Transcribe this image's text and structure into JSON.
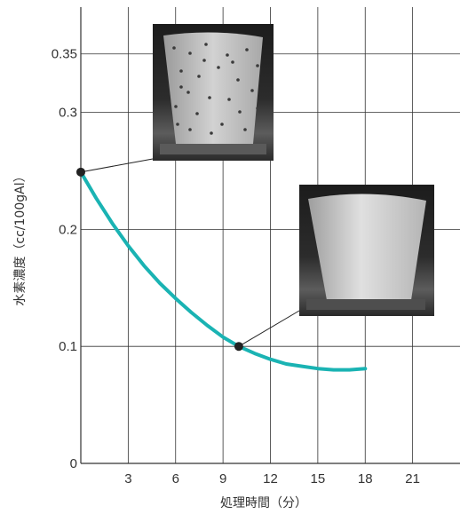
{
  "chart_data": {
    "type": "line",
    "xlabel": "処理時間（分）",
    "ylabel": "水素濃度（cc/100gAl）",
    "xlim": [
      0,
      24
    ],
    "ylim": [
      0,
      0.39
    ],
    "x_ticks": [
      "3",
      "6",
      "9",
      "12",
      "15",
      "18",
      "21"
    ],
    "x_tick_values": [
      3,
      6,
      9,
      12,
      15,
      18,
      21
    ],
    "y_ticks": [
      "0",
      "0.1",
      "0.2",
      "0.3",
      "0.35"
    ],
    "y_tick_values": [
      0,
      0.1,
      0.2,
      0.3,
      0.35
    ],
    "grid": true,
    "series": [
      {
        "x": [
          0,
          1,
          2,
          3,
          4,
          5,
          6,
          7,
          8,
          9,
          10,
          11,
          12,
          13,
          14,
          15,
          16,
          17,
          18
        ],
        "y": [
          0.249,
          0.226,
          0.205,
          0.186,
          0.169,
          0.154,
          0.141,
          0.129,
          0.118,
          0.108,
          0.1,
          0.094,
          0.089,
          0.085,
          0.083,
          0.081,
          0.08,
          0.08,
          0.081
        ],
        "color": "#1ab3b3"
      }
    ],
    "highlight_points": [
      {
        "x": 0,
        "y": 0.249
      },
      {
        "x": 10,
        "y": 0.1
      }
    ],
    "insets": [
      {
        "description": "porous-specimen-photo",
        "points_to": {
          "x": 0,
          "y": 0.249
        }
      },
      {
        "description": "dense-specimen-photo",
        "points_to": {
          "x": 10,
          "y": 0.1
        }
      }
    ],
    "colors": {
      "curve": "#1ab3b3",
      "grid": "#333333",
      "point": "#222222"
    }
  }
}
